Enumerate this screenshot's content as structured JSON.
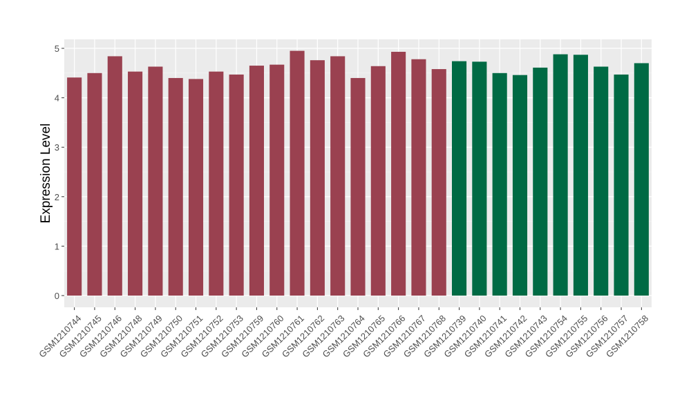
{
  "chart_data": {
    "type": "bar",
    "title": "",
    "xlabel": "",
    "ylabel": "Expression Level",
    "ylim": [
      0,
      5
    ],
    "yticks": [
      0,
      1,
      2,
      3,
      4,
      5
    ],
    "grid": true,
    "colors": {
      "group_a": "#9a4150",
      "group_b": "#006a44",
      "panel": "#ebebeb",
      "gridline": "#ffffff"
    },
    "categories": [
      "GSM1210744",
      "GSM1210745",
      "GSM1210746",
      "GSM1210748",
      "GSM1210749",
      "GSM1210750",
      "GSM1210751",
      "GSM1210752",
      "GSM1210753",
      "GSM1210759",
      "GSM1210760",
      "GSM1210761",
      "GSM1210762",
      "GSM1210763",
      "GSM1210764",
      "GSM1210765",
      "GSM1210766",
      "GSM1210767",
      "GSM1210768",
      "GSM1210739",
      "GSM1210740",
      "GSM1210741",
      "GSM1210742",
      "GSM1210743",
      "GSM1210754",
      "GSM1210755",
      "GSM1210756",
      "GSM1210757",
      "GSM1210758"
    ],
    "values": [
      4.41,
      4.5,
      4.84,
      4.53,
      4.63,
      4.4,
      4.38,
      4.53,
      4.47,
      4.65,
      4.67,
      4.95,
      4.76,
      4.84,
      4.4,
      4.64,
      4.93,
      4.78,
      4.58,
      4.74,
      4.73,
      4.5,
      4.46,
      4.61,
      4.88,
      4.87,
      4.63,
      4.47,
      4.7
    ],
    "bar_groups": [
      "a",
      "a",
      "a",
      "a",
      "a",
      "a",
      "a",
      "a",
      "a",
      "a",
      "a",
      "a",
      "a",
      "a",
      "a",
      "a",
      "a",
      "a",
      "a",
      "b",
      "b",
      "b",
      "b",
      "b",
      "b",
      "b",
      "b",
      "b",
      "b"
    ]
  }
}
